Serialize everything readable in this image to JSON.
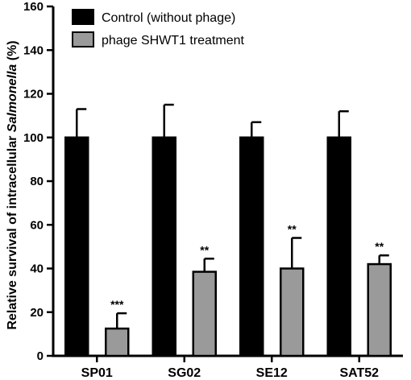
{
  "chart_data": {
    "type": "bar",
    "ylabel_prefix": "Relative survival of intracellular ",
    "ylabel_italic": "Salmonella",
    "ylabel_suffix": " (%)",
    "ylim": [
      0,
      160
    ],
    "yticks": [
      0,
      20,
      40,
      60,
      80,
      100,
      120,
      140,
      160
    ],
    "categories": [
      "SP01",
      "SG02",
      "SE12",
      "SAT52"
    ],
    "series": [
      {
        "name": "Control (without phage)",
        "color": "#000000",
        "values": [
          100,
          100,
          100,
          100
        ],
        "errors": [
          13,
          15,
          7,
          12
        ],
        "significance": [
          "",
          "",
          "",
          ""
        ]
      },
      {
        "name": "phage SHWT1 treatment",
        "color": "#9a9a9a",
        "values": [
          12.5,
          38.5,
          40,
          42
        ],
        "errors": [
          7,
          6,
          14,
          4
        ],
        "significance": [
          "***",
          "**",
          "**",
          "**"
        ]
      }
    ],
    "legend_position": "top-left",
    "grid": false
  }
}
